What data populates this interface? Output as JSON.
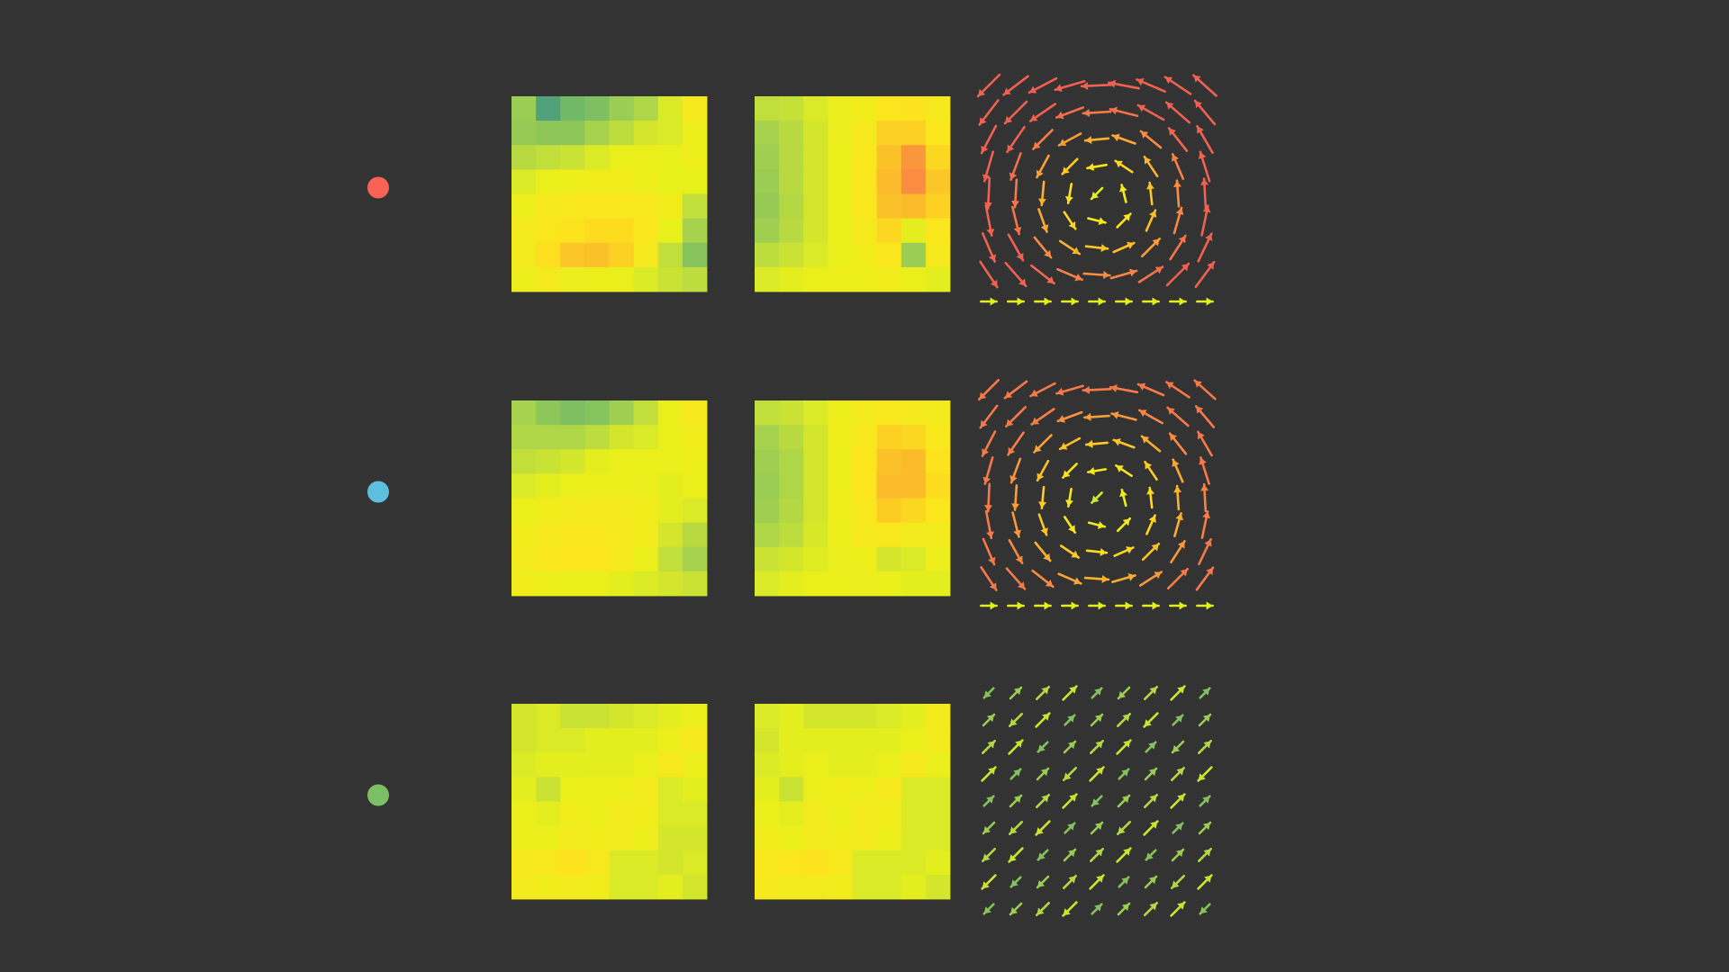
{
  "background": "#333333",
  "colormap": [
    "#3f9382",
    "#6fb868",
    "#a9d34c",
    "#e8f01c",
    "#fde41d",
    "#fbbd2a",
    "#fa8a43",
    "#ef6151"
  ],
  "rows": [
    {
      "marker_color": "#f96356"
    },
    {
      "marker_color": "#5bbfdd"
    },
    {
      "marker_color": "#7dbf66"
    }
  ],
  "chart_data": [
    {
      "type": "heatmap",
      "row": 0,
      "panel": "left",
      "values": [
        [
          0.25,
          0.05,
          0.15,
          0.18,
          0.25,
          0.3,
          0.4,
          0.52
        ],
        [
          0.24,
          0.22,
          0.22,
          0.28,
          0.33,
          0.38,
          0.4,
          0.46
        ],
        [
          0.32,
          0.34,
          0.36,
          0.4,
          0.44,
          0.44,
          0.43,
          0.46
        ],
        [
          0.4,
          0.44,
          0.47,
          0.48,
          0.48,
          0.47,
          0.43,
          0.43
        ],
        [
          0.46,
          0.52,
          0.54,
          0.55,
          0.54,
          0.53,
          0.48,
          0.34
        ],
        [
          0.51,
          0.55,
          0.58,
          0.6,
          0.6,
          0.55,
          0.43,
          0.28
        ],
        [
          0.5,
          0.59,
          0.68,
          0.7,
          0.64,
          0.52,
          0.34,
          0.2
        ],
        [
          0.46,
          0.5,
          0.45,
          0.46,
          0.44,
          0.4,
          0.36,
          0.33
        ]
      ]
    },
    {
      "type": "heatmap",
      "row": 0,
      "panel": "middle",
      "values": [
        [
          0.34,
          0.35,
          0.4,
          0.45,
          0.48,
          0.56,
          0.58,
          0.52
        ],
        [
          0.28,
          0.32,
          0.38,
          0.45,
          0.52,
          0.65,
          0.65,
          0.56
        ],
        [
          0.26,
          0.32,
          0.38,
          0.44,
          0.54,
          0.7,
          0.82,
          0.62
        ],
        [
          0.25,
          0.32,
          0.38,
          0.44,
          0.55,
          0.72,
          0.85,
          0.68
        ],
        [
          0.24,
          0.31,
          0.38,
          0.44,
          0.54,
          0.7,
          0.72,
          0.64
        ],
        [
          0.26,
          0.32,
          0.38,
          0.44,
          0.52,
          0.62,
          0.42,
          0.56
        ],
        [
          0.33,
          0.36,
          0.4,
          0.44,
          0.48,
          0.55,
          0.25,
          0.52
        ],
        [
          0.4,
          0.42,
          0.44,
          0.46,
          0.47,
          0.48,
          0.44,
          0.42
        ]
      ]
    },
    {
      "type": "vector_field",
      "row": 0,
      "panel": "right",
      "pattern": "vortex",
      "extent": 1.0
    },
    {
      "type": "heatmap",
      "row": 1,
      "panel": "left",
      "values": [
        [
          0.28,
          0.22,
          0.18,
          0.2,
          0.26,
          0.34,
          0.44,
          0.52
        ],
        [
          0.3,
          0.3,
          0.3,
          0.33,
          0.38,
          0.4,
          0.44,
          0.48
        ],
        [
          0.34,
          0.36,
          0.38,
          0.42,
          0.44,
          0.44,
          0.44,
          0.46
        ],
        [
          0.4,
          0.42,
          0.44,
          0.46,
          0.46,
          0.45,
          0.42,
          0.44
        ],
        [
          0.44,
          0.48,
          0.5,
          0.51,
          0.5,
          0.48,
          0.42,
          0.4
        ],
        [
          0.48,
          0.52,
          0.54,
          0.54,
          0.52,
          0.48,
          0.38,
          0.32
        ],
        [
          0.5,
          0.54,
          0.56,
          0.56,
          0.52,
          0.44,
          0.34,
          0.28
        ],
        [
          0.48,
          0.46,
          0.44,
          0.44,
          0.42,
          0.4,
          0.38,
          0.36
        ]
      ]
    },
    {
      "type": "heatmap",
      "row": 1,
      "panel": "middle",
      "values": [
        [
          0.34,
          0.36,
          0.4,
          0.46,
          0.5,
          0.54,
          0.52,
          0.5
        ],
        [
          0.28,
          0.32,
          0.38,
          0.46,
          0.54,
          0.64,
          0.62,
          0.54
        ],
        [
          0.26,
          0.3,
          0.38,
          0.46,
          0.56,
          0.7,
          0.72,
          0.58
        ],
        [
          0.25,
          0.3,
          0.38,
          0.46,
          0.56,
          0.72,
          0.72,
          0.6
        ],
        [
          0.26,
          0.31,
          0.38,
          0.46,
          0.54,
          0.66,
          0.62,
          0.56
        ],
        [
          0.3,
          0.33,
          0.39,
          0.46,
          0.52,
          0.54,
          0.5,
          0.5
        ],
        [
          0.36,
          0.38,
          0.41,
          0.45,
          0.46,
          0.38,
          0.4,
          0.46
        ],
        [
          0.4,
          0.42,
          0.44,
          0.44,
          0.45,
          0.44,
          0.42,
          0.42
        ]
      ]
    },
    {
      "type": "vector_field",
      "row": 1,
      "panel": "right",
      "pattern": "vortex",
      "extent": 0.85
    },
    {
      "type": "heatmap",
      "row": 2,
      "panel": "left",
      "values": [
        [
          0.38,
          0.4,
          0.36,
          0.36,
          0.38,
          0.4,
          0.42,
          0.46
        ],
        [
          0.38,
          0.4,
          0.4,
          0.42,
          0.42,
          0.42,
          0.46,
          0.52
        ],
        [
          0.4,
          0.42,
          0.42,
          0.42,
          0.42,
          0.44,
          0.52,
          0.46
        ],
        [
          0.42,
          0.36,
          0.44,
          0.46,
          0.46,
          0.5,
          0.4,
          0.42
        ],
        [
          0.44,
          0.42,
          0.48,
          0.46,
          0.5,
          0.48,
          0.4,
          0.4
        ],
        [
          0.46,
          0.44,
          0.5,
          0.48,
          0.5,
          0.46,
          0.38,
          0.38
        ],
        [
          0.52,
          0.54,
          0.58,
          0.54,
          0.4,
          0.4,
          0.38,
          0.4
        ],
        [
          0.5,
          0.48,
          0.5,
          0.48,
          0.4,
          0.4,
          0.42,
          0.38
        ]
      ]
    },
    {
      "type": "heatmap",
      "row": 2,
      "panel": "middle",
      "values": [
        [
          0.4,
          0.42,
          0.38,
          0.38,
          0.38,
          0.4,
          0.42,
          0.5
        ],
        [
          0.38,
          0.42,
          0.42,
          0.42,
          0.42,
          0.42,
          0.44,
          0.5
        ],
        [
          0.4,
          0.42,
          0.44,
          0.42,
          0.42,
          0.44,
          0.52,
          0.44
        ],
        [
          0.42,
          0.36,
          0.46,
          0.48,
          0.46,
          0.52,
          0.4,
          0.4
        ],
        [
          0.44,
          0.42,
          0.5,
          0.46,
          0.5,
          0.48,
          0.4,
          0.4
        ],
        [
          0.48,
          0.44,
          0.5,
          0.48,
          0.5,
          0.46,
          0.4,
          0.4
        ],
        [
          0.54,
          0.56,
          0.58,
          0.54,
          0.4,
          0.4,
          0.4,
          0.42
        ],
        [
          0.52,
          0.5,
          0.5,
          0.48,
          0.4,
          0.4,
          0.42,
          0.38
        ]
      ]
    },
    {
      "type": "vector_field",
      "row": 2,
      "panel": "right",
      "pattern": "diagonal",
      "extent": 0.6
    }
  ]
}
